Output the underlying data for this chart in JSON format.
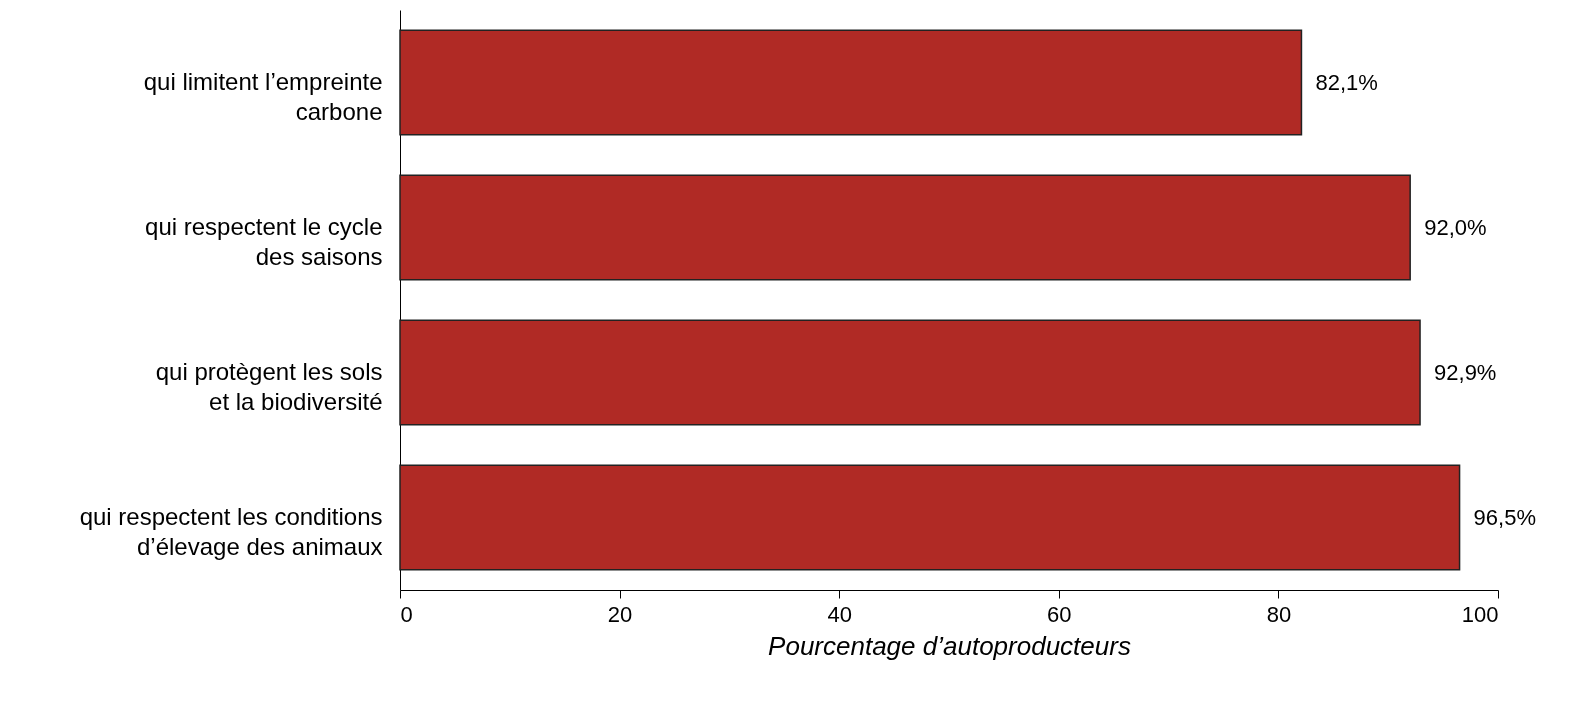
{
  "chart_data": {
    "type": "bar",
    "orientation": "horizontal",
    "categories": [
      "qui limitent l’empreinte\ncarbone",
      "qui respectent le cycle\ndes saisons",
      "qui protègent les sols\net la biodiversité",
      "qui respectent les conditions\nd’élevage des animaux"
    ],
    "values": [
      82.1,
      92.0,
      92.9,
      96.5
    ],
    "value_labels": [
      "82,1%",
      "92,0%",
      "92,9%",
      "96,5%"
    ],
    "color": "#b02a25",
    "xlabel": "Pourcentage d’autoproducteurs",
    "xlim": [
      0,
      100
    ],
    "xticks": [
      0,
      20,
      40,
      60,
      80,
      100
    ],
    "grid": false
  }
}
